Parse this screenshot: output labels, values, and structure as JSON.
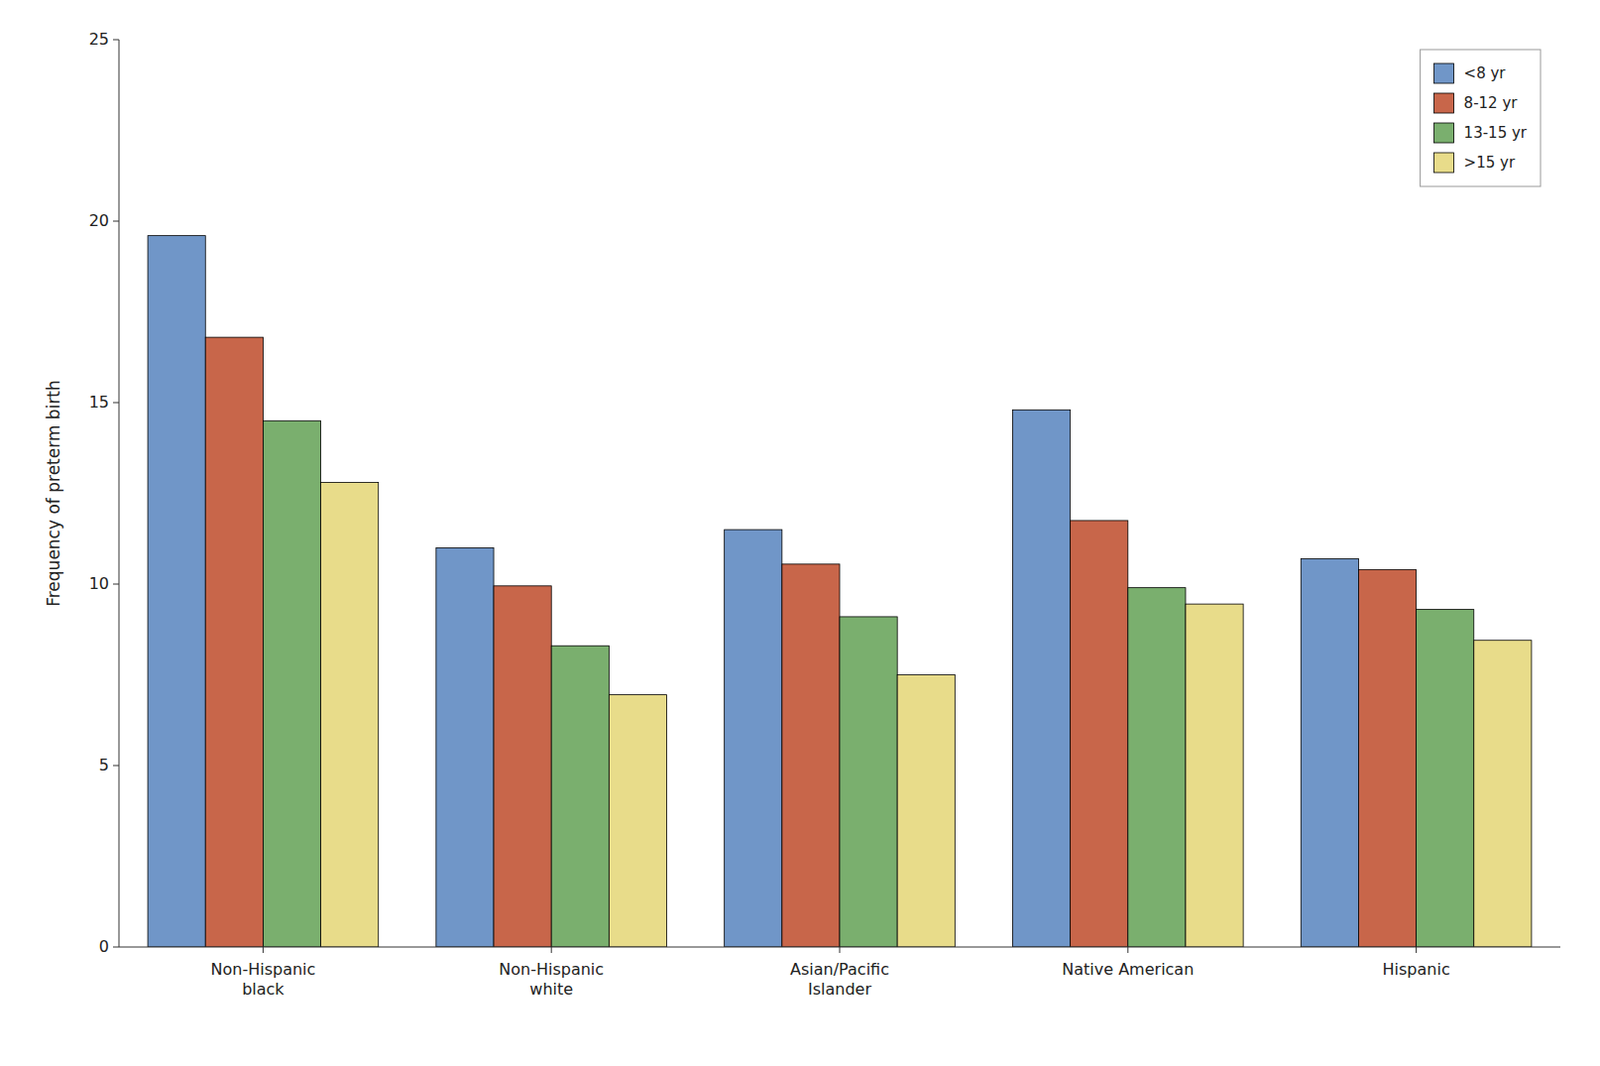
{
  "chart_data": {
    "type": "bar",
    "categories": [
      "Non-Hispanic\nblack",
      "Non-Hispanic\nwhite",
      "Asian/Pacific\nIslander",
      "Native American",
      "Hispanic"
    ],
    "series": [
      {
        "name": "<8 yr",
        "color": "#7096C8",
        "values": [
          19.6,
          11.0,
          11.5,
          14.8,
          10.7
        ]
      },
      {
        "name": "8-12 yr",
        "color": "#C8664A",
        "values": [
          16.8,
          9.95,
          10.55,
          11.75,
          10.4
        ]
      },
      {
        "name": "13-15 yr",
        "color": "#7AAF6E",
        "values": [
          14.5,
          8.3,
          9.1,
          9.9,
          9.3
        ]
      },
      {
        "name": ">15 yr",
        "color": "#E8DC8A",
        "values": [
          12.8,
          6.95,
          7.5,
          9.45,
          8.45
        ]
      }
    ],
    "ylabel": "Frequency of preterm birth",
    "ylim": [
      0,
      25
    ],
    "yticks": [
      0,
      5,
      10,
      15,
      20,
      25
    ],
    "legend": "upper right",
    "grid": false
  }
}
